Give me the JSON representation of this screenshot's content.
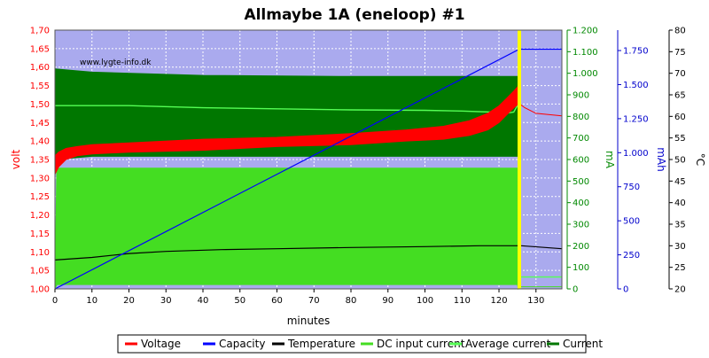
{
  "chart_data": {
    "type": "line",
    "title": "Allmaybe 1A (eneloop) #1",
    "watermark": "www.lygte-info.dk",
    "xlabel": "minutes",
    "xlim": [
      0,
      137
    ],
    "x_ticks": [
      0,
      10,
      20,
      30,
      40,
      50,
      60,
      70,
      80,
      90,
      100,
      110,
      120,
      130
    ],
    "plot_background": "#aaaaee",
    "grid": true,
    "legend_position": "bottom",
    "axes": {
      "volt": {
        "label": "volt",
        "color": "#ff0000",
        "range": [
          1.0,
          1.7
        ],
        "ticks": [
          "1,00",
          "1,05",
          "1,10",
          "1,15",
          "1,20",
          "1,25",
          "1,30",
          "1,35",
          "1,40",
          "1,45",
          "1,50",
          "1,55",
          "1,60",
          "1,65",
          "1,70"
        ]
      },
      "mA": {
        "label": "mA",
        "color": "#008800",
        "range": [
          0,
          1200
        ],
        "ticks": [
          "0",
          "100",
          "200",
          "300",
          "400",
          "500",
          "600",
          "700",
          "800",
          "900",
          "1.000",
          "1.100",
          "1.200"
        ]
      },
      "mAh": {
        "label": "mAh",
        "color": "#0000cc",
        "range": [
          0,
          1900
        ],
        "ticks": [
          "0",
          "250",
          "500",
          "750",
          "1.000",
          "1.250",
          "1.500",
          "1.750"
        ],
        "tick_values": [
          0,
          250,
          500,
          750,
          1000,
          1250,
          1500,
          1750
        ]
      },
      "celsius": {
        "label": "°C",
        "color": "#000000",
        "range": [
          20,
          80
        ],
        "ticks": [
          "20",
          "25",
          "30",
          "35",
          "40",
          "45",
          "50",
          "55",
          "60",
          "65",
          "70",
          "75",
          "80"
        ]
      }
    },
    "charge_end_marker_x": 125.5,
    "series": [
      {
        "name": "Voltage",
        "axis": "volt",
        "color": "#ff0000",
        "x": [
          0,
          1,
          3,
          6,
          10,
          20,
          40,
          60,
          80,
          95,
          105,
          112,
          117,
          120,
          122,
          124,
          125.3,
          125.6,
          127,
          130,
          137
        ],
        "upper": [
          1.36,
          1.37,
          1.38,
          1.385,
          1.39,
          1.395,
          1.405,
          1.41,
          1.42,
          1.43,
          1.44,
          1.455,
          1.475,
          1.495,
          1.515,
          1.535,
          1.55,
          1.5,
          1.49,
          1.475,
          1.468
        ],
        "lower": [
          1.31,
          1.33,
          1.35,
          1.36,
          1.365,
          1.37,
          1.375,
          1.385,
          1.39,
          1.4,
          1.405,
          1.415,
          1.43,
          1.45,
          1.47,
          1.49,
          1.5,
          1.5,
          1.49,
          1.475,
          1.468
        ]
      },
      {
        "name": "Capacity",
        "axis": "mAh",
        "color": "#0000ff",
        "x": [
          0,
          125.5,
          137
        ],
        "values": [
          0,
          1760,
          1760
        ]
      },
      {
        "name": "Temperature",
        "axis": "celsius",
        "color": "#000000",
        "x": [
          0,
          10,
          20,
          30,
          45,
          60,
          80,
          100,
          115,
          126,
          137
        ],
        "values": [
          26.7,
          27.3,
          28.2,
          28.7,
          29.1,
          29.3,
          29.6,
          29.8,
          30.0,
          30.0,
          29.3
        ]
      },
      {
        "name": "DC input current",
        "axis": "mA",
        "color": "#44dd22",
        "x": [
          0,
          0.5,
          125,
          125.2,
          126,
          137
        ],
        "upper": [
          0,
          560,
          560,
          0,
          10,
          10
        ],
        "lower": [
          0,
          20,
          20,
          0,
          10,
          10
        ]
      },
      {
        "name": "Average current",
        "axis": "mA",
        "color": "#55ff55",
        "x": [
          0,
          20,
          40,
          60,
          80,
          100,
          110,
          118,
          122,
          124,
          125.3,
          125.6,
          137
        ],
        "values": [
          850,
          850,
          840,
          835,
          830,
          828,
          825,
          820,
          815,
          820,
          860,
          55,
          55
        ]
      },
      {
        "name": "Current",
        "axis": "mA",
        "color": "#007700",
        "x": [
          0,
          10,
          40,
          80,
          110,
          124,
          125.2,
          125.4
        ],
        "upper": [
          1020,
          1005,
          990,
          985,
          985,
          985,
          985,
          0
        ],
        "lower": [
          600,
          615,
          615,
          615,
          615,
          615,
          615,
          0
        ]
      }
    ]
  }
}
